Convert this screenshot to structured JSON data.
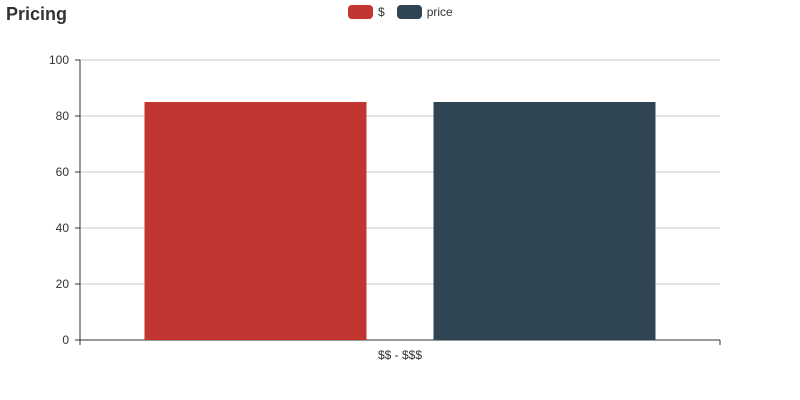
{
  "chart_data": {
    "type": "bar",
    "title": "Pricing",
    "categories": [
      "$$ - $$$"
    ],
    "series": [
      {
        "name": "$",
        "values": [
          85
        ],
        "color": "#c23531"
      },
      {
        "name": "price",
        "values": [
          85
        ],
        "color": "#2f4554"
      }
    ],
    "ylim": [
      0,
      100
    ],
    "yticks": [
      0,
      20,
      40,
      60,
      80,
      100
    ],
    "grid": true,
    "legend_position": "top-center"
  }
}
